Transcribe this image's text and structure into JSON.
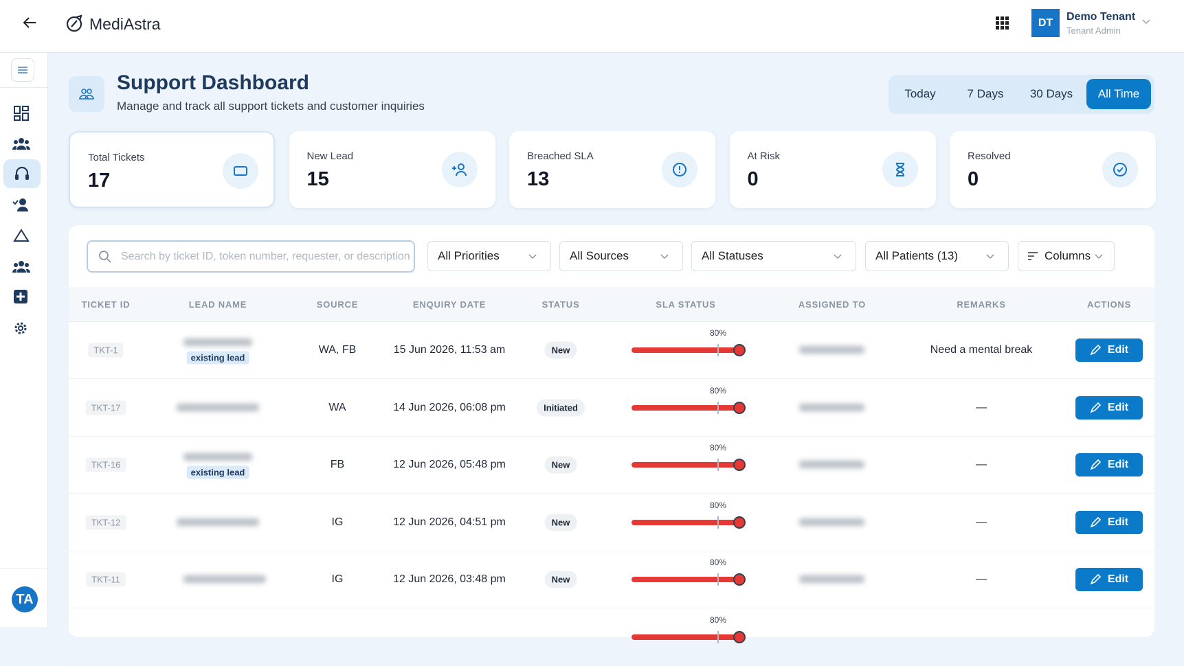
{
  "header": {
    "brand": "MediAstra",
    "user_initials": "DT",
    "user_name": "Demo Tenant",
    "user_role": "Tenant Admin"
  },
  "sidebar": {
    "avatar": "TA"
  },
  "page": {
    "title": "Support Dashboard",
    "subtitle": "Manage and track all support tickets and customer inquiries",
    "ranges": [
      "Today",
      "7 Days",
      "30 Days",
      "All Time"
    ],
    "active_range": 3
  },
  "cards": [
    {
      "label": "Total Tickets",
      "value": "17"
    },
    {
      "label": "New Lead",
      "value": "15"
    },
    {
      "label": "Breached SLA",
      "value": "13"
    },
    {
      "label": "At Risk",
      "value": "0"
    },
    {
      "label": "Resolved",
      "value": "0"
    }
  ],
  "filters": {
    "search_placeholder": "Search by ticket ID, token number, requester, or description",
    "selects": [
      "All Priorities",
      "All Sources",
      "All Statuses",
      "All Patients (13)",
      "Columns"
    ]
  },
  "table": {
    "columns": [
      "TICKET ID",
      "LEAD NAME",
      "SOURCE",
      "ENQUIRY DATE",
      "STATUS",
      "SLA STATUS",
      "ASSIGNED TO",
      "REMARKS",
      "ACTIONS"
    ],
    "rows": [
      {
        "id": "TKT-1",
        "tag": "existing lead",
        "source": "WA, FB",
        "date": "15 Jun 2026, 11:53 am",
        "status": "New",
        "sla": "80%",
        "remarks": "Need a mental break",
        "action": "Edit"
      },
      {
        "id": "TKT-17",
        "source": "WA",
        "date": "14 Jun 2026, 06:08 pm",
        "status": "Initiated",
        "sla": "80%",
        "remarks": "—",
        "action": "Edit"
      },
      {
        "id": "TKT-16",
        "tag": "existing lead",
        "source": "FB",
        "date": "12 Jun 2026, 05:48 pm",
        "status": "New",
        "sla": "80%",
        "remarks": "—",
        "action": "Edit"
      },
      {
        "id": "TKT-12",
        "source": "IG",
        "date": "12 Jun 2026, 04:51 pm",
        "status": "New",
        "sla": "80%",
        "remarks": "—",
        "action": "Edit"
      },
      {
        "id": "TKT-11",
        "source": "IG",
        "date": "12 Jun 2026, 03:48 pm",
        "status": "New",
        "sla": "80%",
        "remarks": "—",
        "action": "Edit"
      },
      {
        "sla": "80%"
      }
    ]
  }
}
